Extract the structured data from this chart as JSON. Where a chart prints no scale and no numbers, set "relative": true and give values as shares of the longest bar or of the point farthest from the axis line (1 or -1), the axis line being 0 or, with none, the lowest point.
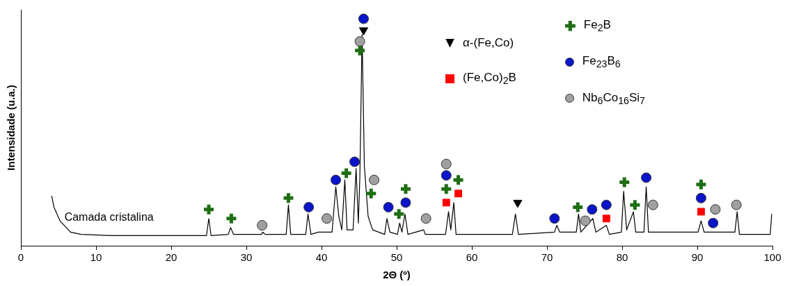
{
  "chart_data": {
    "type": "scatter",
    "relative": true,
    "xlabel": "2Θ (º)",
    "ylabel": "Intensidade (u.a.)",
    "xlim": [
      0,
      100
    ],
    "xticks": [
      0,
      10,
      20,
      30,
      40,
      50,
      60,
      70,
      80,
      90,
      100
    ],
    "grid": false,
    "legend": "top right",
    "annotations": [
      {
        "text": "Camada cristalina",
        "x": 5.8,
        "y": 0.1
      }
    ],
    "series": [
      {
        "type": "line",
        "color": "#000000",
        "marker": "none",
        "line_style": "solid",
        "x": [
          4.1,
          4.4,
          5.2,
          6.6,
          8,
          12,
          20,
          24.7,
          25.0,
          25.3,
          27.6,
          27.9,
          28.3,
          32,
          32.2,
          32.5,
          35.3,
          35.6,
          35.9,
          37.9,
          38.2,
          38.6,
          39.6,
          41.4,
          41.9,
          42.3,
          42.7,
          43.1,
          43.4,
          44.2,
          44.6,
          44.9,
          45.1,
          45.4,
          45.7,
          46.2,
          46.8,
          48.4,
          48.7,
          49.1,
          50.1,
          50.4,
          50.7,
          51.1,
          51.5,
          53.6,
          53.8,
          56.5,
          56.9,
          57.2,
          57.6,
          57.9,
          65.4,
          65.8,
          66.2,
          71.0,
          71.3,
          71.7,
          73.9,
          74.2,
          74.5,
          76.1,
          76.5,
          77.9,
          78.3,
          79.9,
          80.2,
          80.6,
          81.5,
          81.8,
          82.9,
          83.2,
          83.5,
          90.1,
          90.5,
          90.9,
          95.0,
          95.3,
          95.6,
          99.7,
          99.9
        ],
        "values": [
          0.22,
          0.17,
          0.11,
          0.06,
          0.05,
          0.045,
          0.045,
          0.045,
          0.12,
          0.045,
          0.05,
          0.08,
          0.05,
          0.05,
          0.06,
          0.05,
          0.05,
          0.18,
          0.05,
          0.05,
          0.14,
          0.05,
          0.06,
          0.06,
          0.26,
          0.13,
          0.07,
          0.29,
          0.07,
          0.07,
          0.34,
          0.1,
          0.3,
          0.93,
          0.35,
          0.13,
          0.07,
          0.05,
          0.12,
          0.06,
          0.05,
          0.1,
          0.06,
          0.14,
          0.05,
          0.07,
          0.05,
          0.05,
          0.15,
          0.07,
          0.19,
          0.05,
          0.05,
          0.14,
          0.05,
          0.06,
          0.09,
          0.06,
          0.06,
          0.14,
          0.06,
          0.12,
          0.06,
          0.09,
          0.05,
          0.06,
          0.24,
          0.07,
          0.15,
          0.06,
          0.06,
          0.26,
          0.06,
          0.06,
          0.11,
          0.06,
          0.06,
          0.15,
          0.05,
          0.05,
          0.14
        ]
      },
      {
        "name": "α-(Fe,Co)",
        "color": "#000000",
        "marker": "triangle",
        "x": [
          45.6,
          66.1
        ],
        "values": [
          0.95,
          0.19
        ]
      },
      {
        "name": "(Fe,Co)$_{2}$B",
        "color": "#ff0000",
        "marker": "square",
        "x": [
          56.6,
          58.2,
          77.9,
          90.5
        ],
        "values": [
          0.19,
          0.23,
          0.12,
          0.15
        ]
      },
      {
        "name": "Fe$_{2}$B",
        "color": "#1e6e14",
        "marker": "cross",
        "x": [
          25.0,
          28.0,
          35.6,
          43.3,
          45.1,
          46.6,
          50.3,
          51.2,
          56.6,
          58.2,
          74.1,
          80.3,
          81.7,
          90.5
        ],
        "values": [
          0.16,
          0.12,
          0.21,
          0.32,
          0.86,
          0.23,
          0.14,
          0.25,
          0.25,
          0.29,
          0.17,
          0.28,
          0.18,
          0.27
        ]
      },
      {
        "name": "Fe$_{23}$B$_{6}$",
        "color": "#0a14c8",
        "marker": "circle",
        "x": [
          38.3,
          41.9,
          44.4,
          45.6,
          48.9,
          51.2,
          56.6,
          71.0,
          76.0,
          77.9,
          83.2,
          90.5,
          92.1
        ],
        "values": [
          0.17,
          0.29,
          0.37,
          1.0,
          0.17,
          0.19,
          0.31,
          0.12,
          0.16,
          0.18,
          0.3,
          0.21,
          0.1
        ]
      },
      {
        "name": "Nb$_{6}$Co$_{16}$Si$_{7}$",
        "color": "#a0a0a0",
        "marker": "circle",
        "x": [
          32.1,
          40.7,
          45.1,
          47.0,
          53.9,
          56.6,
          75.1,
          84.1,
          92.4,
          95.2
        ],
        "values": [
          0.09,
          0.12,
          0.9,
          0.29,
          0.12,
          0.36,
          0.11,
          0.18,
          0.16,
          0.18
        ]
      }
    ]
  }
}
